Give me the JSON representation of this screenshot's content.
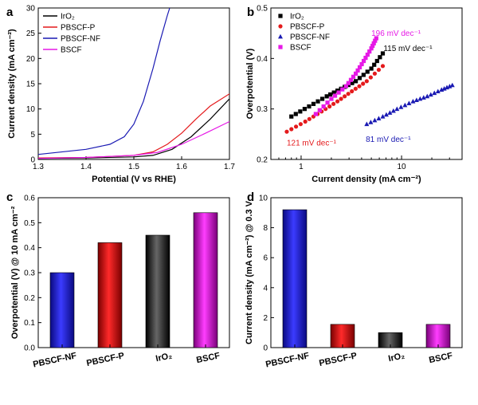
{
  "chart_data": [
    {
      "panel": "a",
      "type": "line",
      "xlabel": "Potential (V vs RHE)",
      "ylabel": "Current density (mA cm⁻²)",
      "xlim": [
        1.3,
        1.7
      ],
      "ylim": [
        0,
        30
      ],
      "xticks": [
        "1.3",
        "1.4",
        "1.5",
        "1.6",
        "1.7"
      ],
      "yticks": [
        "0",
        "5",
        "10",
        "15",
        "20",
        "25",
        "30"
      ],
      "legend_position": "top-left",
      "series": [
        {
          "name": "IrO₂",
          "color": "#000000",
          "x": [
            1.3,
            1.4,
            1.5,
            1.54,
            1.58,
            1.62,
            1.66,
            1.7
          ],
          "y": [
            0.2,
            0.3,
            0.5,
            0.8,
            2.0,
            4.5,
            8.0,
            12.0
          ]
        },
        {
          "name": "PBSCF-P",
          "color": "#e41a1c",
          "x": [
            1.3,
            1.4,
            1.5,
            1.54,
            1.57,
            1.6,
            1.63,
            1.66,
            1.7
          ],
          "y": [
            0.3,
            0.4,
            0.8,
            1.5,
            3.0,
            5.2,
            8.0,
            10.6,
            13.0
          ]
        },
        {
          "name": "PBSCF-NF",
          "color": "#1a1ab3",
          "x": [
            1.3,
            1.4,
            1.45,
            1.48,
            1.5,
            1.52,
            1.54,
            1.555,
            1.57,
            1.575
          ],
          "y": [
            1.0,
            2.0,
            3.0,
            4.5,
            7.0,
            11.5,
            18.0,
            23.5,
            28.5,
            30.0
          ]
        },
        {
          "name": "BSCF",
          "color": "#e619e6",
          "x": [
            1.3,
            1.4,
            1.5,
            1.55,
            1.6,
            1.65,
            1.7
          ],
          "y": [
            0.2,
            0.4,
            0.8,
            1.4,
            3.0,
            5.2,
            7.5
          ]
        }
      ]
    },
    {
      "panel": "b",
      "type": "scatter",
      "xlabel": "Current density (mA cm⁻²)",
      "ylabel": "Overpotential (V)",
      "xscale": "log",
      "xlim": [
        0.5,
        40
      ],
      "ylim": [
        0.2,
        0.5
      ],
      "xticks": [
        "1",
        "10"
      ],
      "yticks": [
        "0.2",
        "0.3",
        "0.4",
        "0.5"
      ],
      "legend_position": "top-left",
      "series": [
        {
          "name": "IrO₂",
          "color": "#000000",
          "marker": "square",
          "x": [
            0.8,
            1.2,
            1.8,
            2.5,
            3.5,
            5.0,
            6.5
          ],
          "y": [
            0.285,
            0.305,
            0.325,
            0.34,
            0.355,
            0.38,
            0.41
          ]
        },
        {
          "name": "PBSCF-P",
          "color": "#e41a1c",
          "marker": "circle",
          "x": [
            0.72,
            1.1,
            1.6,
            2.3,
            3.2,
            4.5,
            6.5
          ],
          "y": [
            0.255,
            0.275,
            0.295,
            0.315,
            0.335,
            0.355,
            0.385
          ]
        },
        {
          "name": "PBSCF-NF",
          "color": "#1a1ab3",
          "marker": "triangle",
          "x": [
            4.5,
            6.5,
            9.0,
            13.0,
            18.0,
            25.0,
            32.0
          ],
          "y": [
            0.27,
            0.285,
            0.3,
            0.315,
            0.325,
            0.338,
            0.347
          ]
        },
        {
          "name": "BSCF",
          "color": "#e619e6",
          "marker": "square",
          "x": [
            1.4,
            2.0,
            2.8,
            3.5,
            4.2,
            5.0,
            5.6
          ],
          "y": [
            0.29,
            0.32,
            0.345,
            0.37,
            0.395,
            0.42,
            0.44
          ]
        }
      ],
      "annotations": [
        {
          "text": "196 mV dec⁻¹",
          "color": "#e619e6",
          "x": 5.0,
          "y": 0.445
        },
        {
          "text": "115 mV dec⁻¹",
          "color": "#000000",
          "x": 6.6,
          "y": 0.415
        },
        {
          "text": "121 mV dec⁻¹",
          "color": "#e41a1c",
          "x": 0.72,
          "y": 0.228
        },
        {
          "text": "81 mV dec⁻¹",
          "color": "#1a1ab3",
          "x": 4.4,
          "y": 0.235
        }
      ]
    },
    {
      "panel": "c",
      "type": "bar",
      "ylabel": "Overpotential (V) @ 10 mA cm⁻²",
      "ylim": [
        0,
        0.6
      ],
      "yticks": [
        "0.0",
        "0.1",
        "0.2",
        "0.3",
        "0.4",
        "0.5",
        "0.6"
      ],
      "categories": [
        "PBSCF-NF",
        "PBSCF-P",
        "IrO₂",
        "BSCF"
      ],
      "values": [
        0.3,
        0.42,
        0.45,
        0.54
      ],
      "colors": [
        "#1a1ae6",
        "#d81818",
        "#111111",
        "#e619e6"
      ]
    },
    {
      "panel": "d",
      "type": "bar",
      "ylabel": "Current density (mA cm⁻²) @ 0.3 V",
      "ylim": [
        0,
        10
      ],
      "yticks": [
        "0",
        "2",
        "4",
        "6",
        "8",
        "10"
      ],
      "categories": [
        "PBSCF-NF",
        "PBSCF-P",
        "IrO₂",
        "BSCF"
      ],
      "values": [
        9.2,
        1.55,
        1.0,
        1.55
      ],
      "colors": [
        "#1a1ae6",
        "#d81818",
        "#111111",
        "#e619e6"
      ]
    }
  ]
}
